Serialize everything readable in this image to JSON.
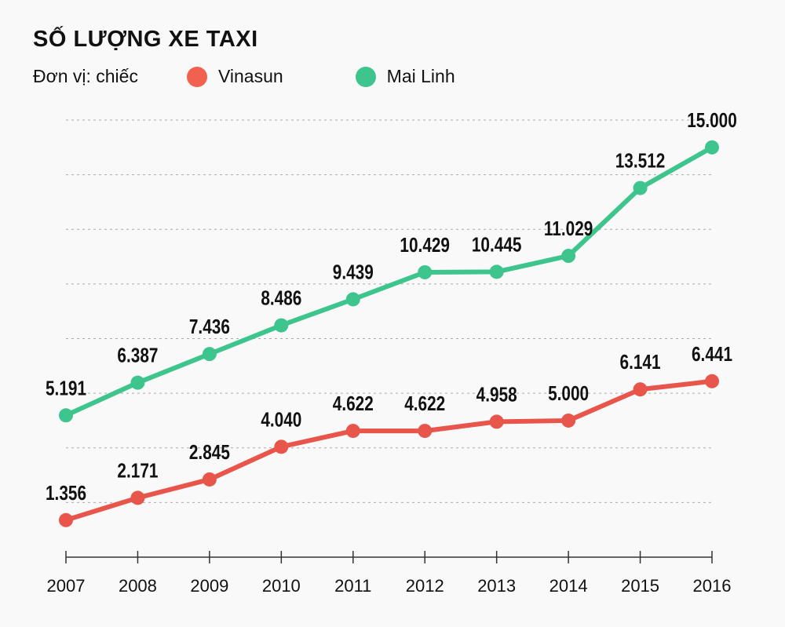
{
  "chart_data": {
    "type": "line",
    "title": "SỐ LƯỢNG XE TAXI",
    "unit_label": "Đơn vị: chiếc",
    "categories": [
      "2007",
      "2008",
      "2009",
      "2010",
      "2011",
      "2012",
      "2013",
      "2014",
      "2015",
      "2016"
    ],
    "series": [
      {
        "name": "Vinasun",
        "color": "#e8554b",
        "values": [
          1356,
          2171,
          2845,
          4040,
          4622,
          4622,
          4958,
          5000,
          6141,
          6441
        ],
        "labels": [
          "1.356",
          "2.171",
          "2.845",
          "4.040",
          "4.622",
          "4.622",
          "4.958",
          "5.000",
          "6.141",
          "6.441"
        ]
      },
      {
        "name": "Mai Linh",
        "color": "#3ec48d",
        "values": [
          5191,
          6387,
          7436,
          8486,
          9439,
          10429,
          10445,
          11029,
          13512,
          15000
        ],
        "labels": [
          "5.191",
          "6.387",
          "7.436",
          "8.486",
          "9.439",
          "10.429",
          "10.445",
          "11.029",
          "13.512",
          "15.000"
        ]
      }
    ],
    "ylim": [
      0,
      16000
    ],
    "grid": true,
    "legend_position": "top-left"
  }
}
